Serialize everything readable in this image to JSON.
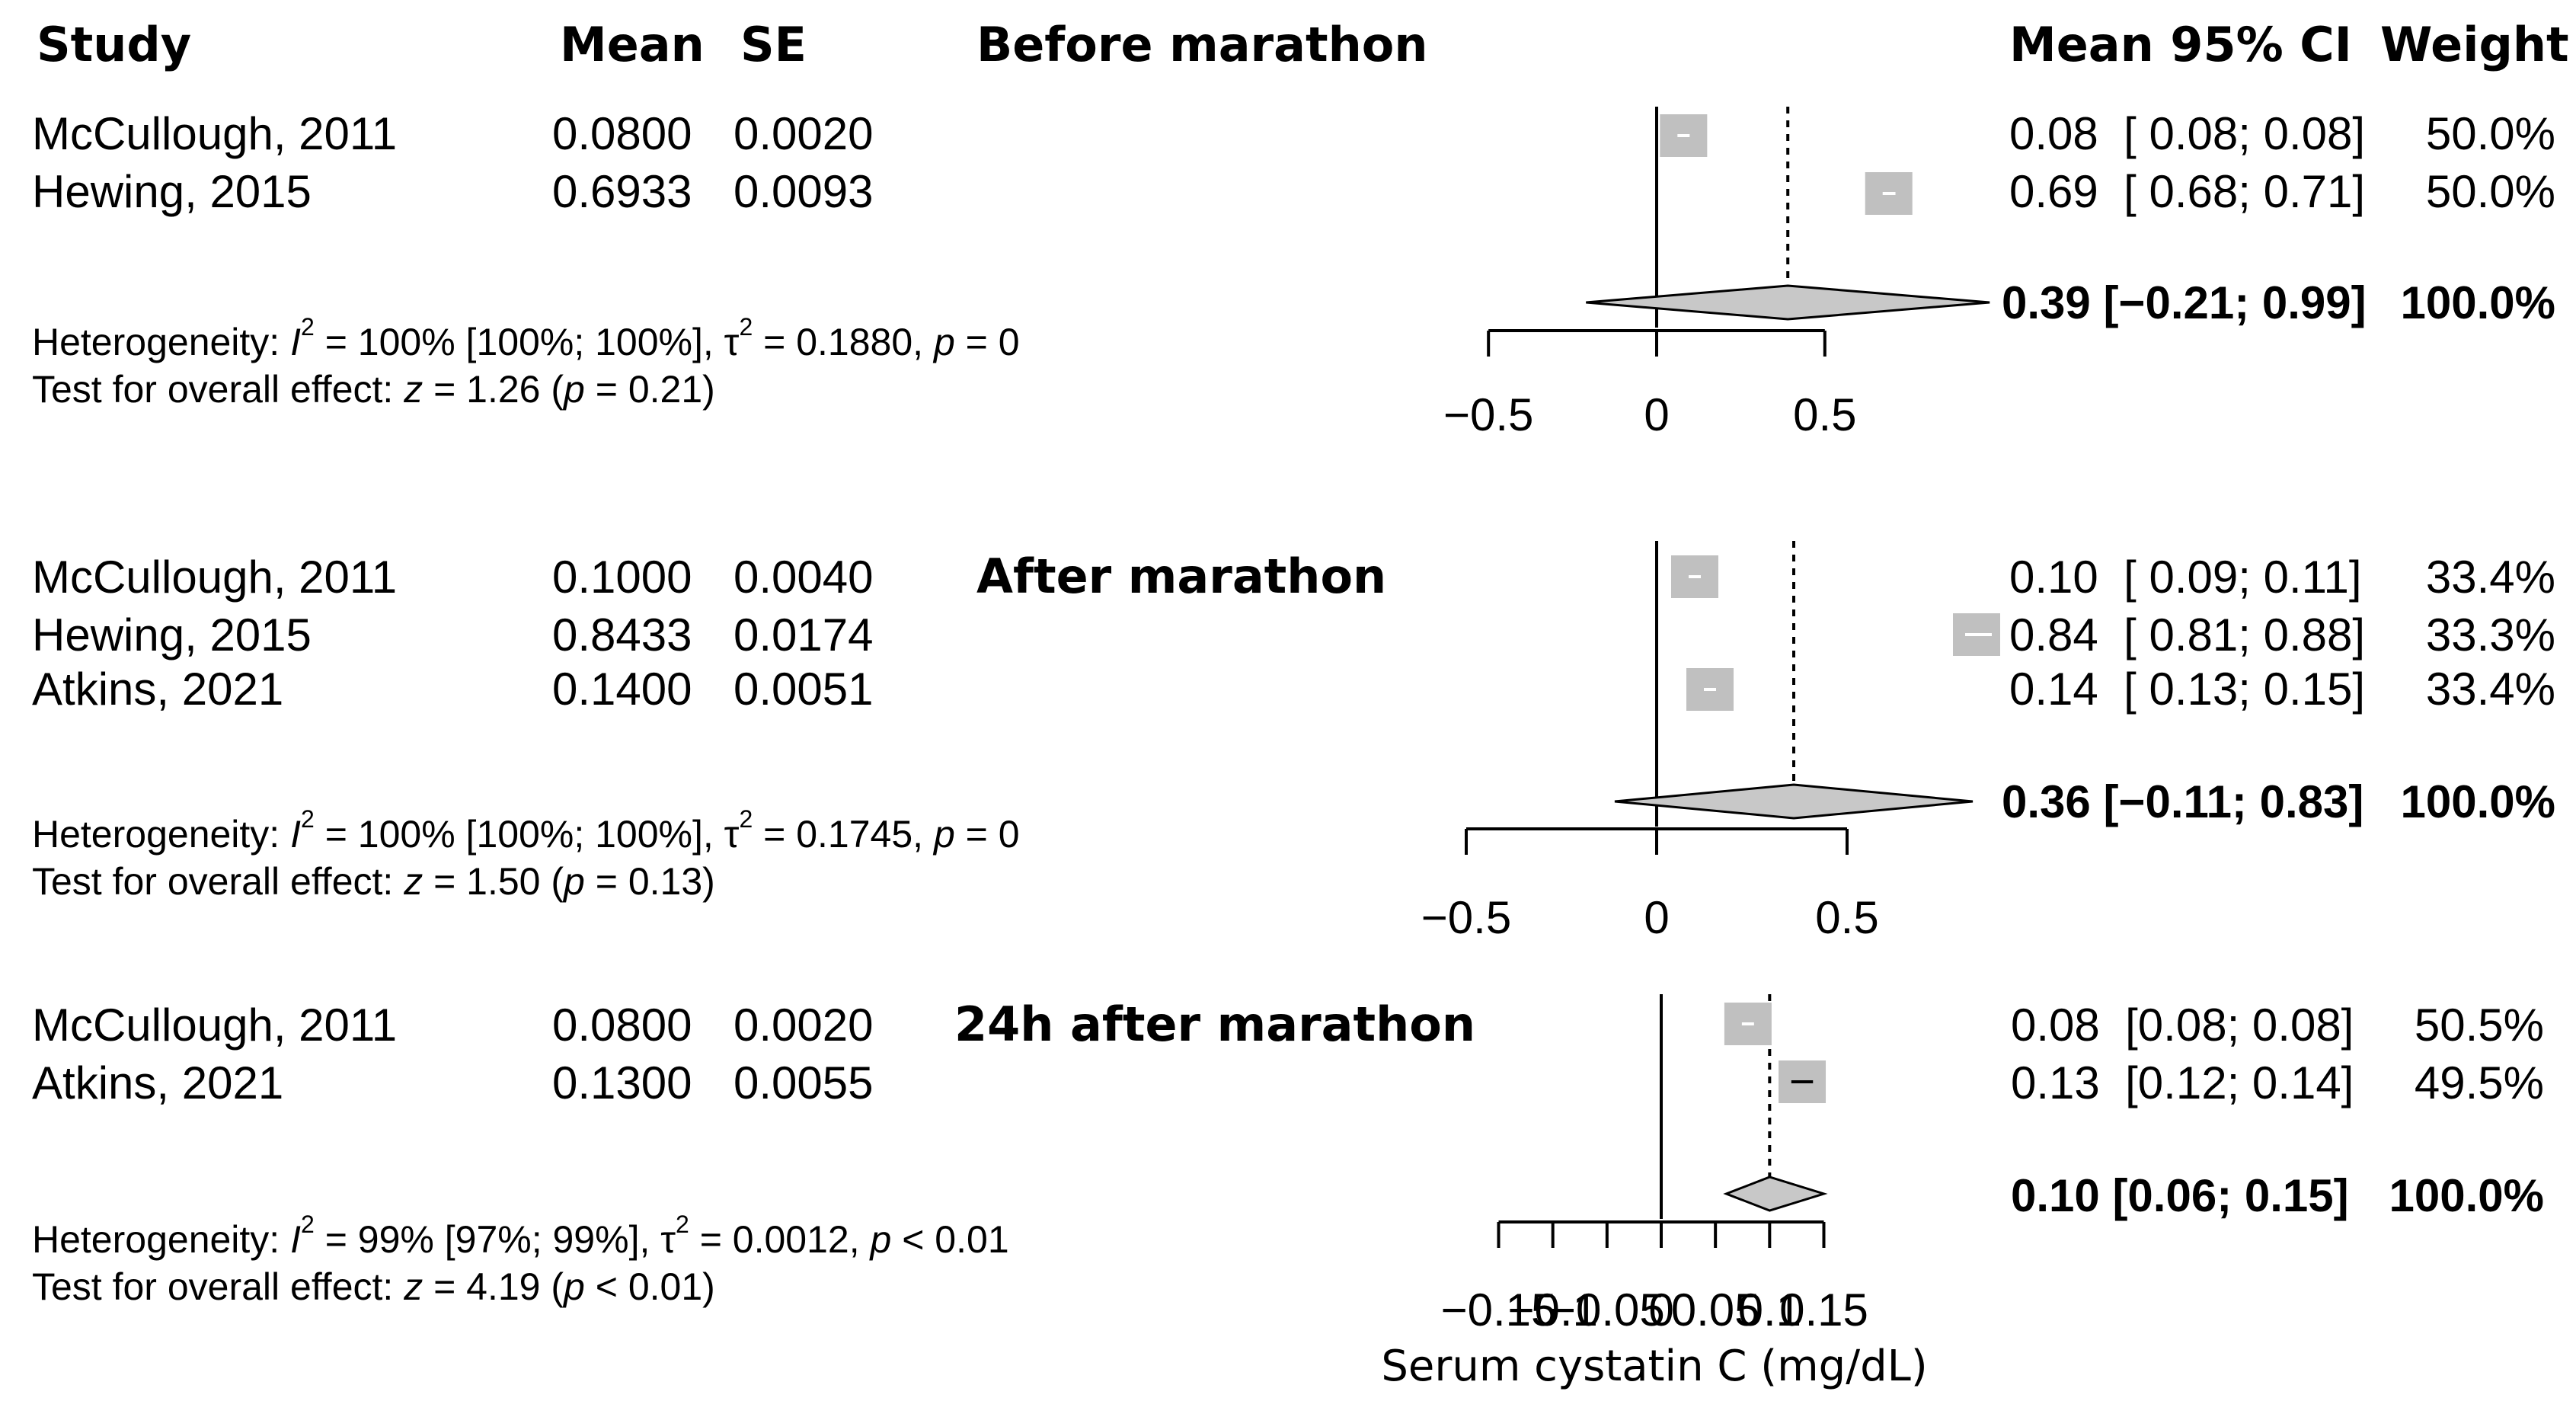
{
  "header": {
    "study": "Study",
    "mean": "Mean",
    "se": "SE",
    "mean_ci": "Mean 95% CI",
    "weight": "Weight"
  },
  "colors": {
    "box": "#c0c0c0",
    "diamond": "#c8c8c8",
    "ink": "#000000"
  },
  "chart_data": [
    {
      "type": "forest",
      "title": "Before marathon",
      "xlim": [
        -0.5,
        0.5
      ],
      "ticks": [
        {
          "v": -0.5,
          "label": "−0.5"
        },
        {
          "v": 0,
          "label": "0"
        },
        {
          "v": 0.5,
          "label": "0.5"
        }
      ],
      "studies": [
        {
          "name": "McCullough, 2011",
          "mean": "0.0800",
          "se": "0.0020",
          "est": 0.08,
          "lo": 0.08,
          "hi": 0.08,
          "ci": "0.08  [ 0.08; 0.08]",
          "weight": "50.0%"
        },
        {
          "name": "Hewing, 2015",
          "mean": "0.6933",
          "se": "0.0093",
          "est": 0.69,
          "lo": 0.68,
          "hi": 0.71,
          "ci": "0.69  [ 0.68; 0.71]",
          "weight": "50.0%"
        }
      ],
      "pooled": {
        "est": 0.39,
        "lo": -0.21,
        "hi": 0.99,
        "ci": "0.39 [−0.21; 0.99]",
        "weight": "100.0%"
      },
      "heterogeneity": {
        "i2": " = 100% [100%; 100%], ",
        "tau2": " = 0.1880, ",
        "p": " = 0"
      },
      "overall": {
        "z": " = 1.26 (",
        "p": " = 0.21)"
      }
    },
    {
      "type": "forest",
      "title": "After marathon",
      "xlim": [
        -0.5,
        0.5
      ],
      "ticks": [
        {
          "v": -0.5,
          "label": "−0.5"
        },
        {
          "v": 0,
          "label": "0"
        },
        {
          "v": 0.5,
          "label": "0.5"
        }
      ],
      "studies": [
        {
          "name": "McCullough, 2011",
          "mean": "0.1000",
          "se": "0.0040",
          "est": 0.1,
          "lo": 0.09,
          "hi": 0.11,
          "ci": "0.10  [ 0.09; 0.11]",
          "weight": "33.4%"
        },
        {
          "name": "Hewing, 2015",
          "mean": "0.8433",
          "se": "0.0174",
          "est": 0.84,
          "lo": 0.81,
          "hi": 0.88,
          "ci": "0.84  [ 0.81; 0.88]",
          "weight": "33.3%"
        },
        {
          "name": "Atkins, 2021",
          "mean": "0.1400",
          "se": "0.0051",
          "est": 0.14,
          "lo": 0.13,
          "hi": 0.15,
          "ci": "0.14  [ 0.13; 0.15]",
          "weight": "33.4%"
        }
      ],
      "pooled": {
        "est": 0.36,
        "lo": -0.11,
        "hi": 0.83,
        "ci": "0.36 [−0.11; 0.83]",
        "weight": "100.0%"
      },
      "heterogeneity": {
        "i2": " = 100% [100%; 100%], ",
        "tau2": " = 0.1745, ",
        "p": " = 0"
      },
      "overall": {
        "z": " = 1.50 (",
        "p": " = 0.13)"
      }
    },
    {
      "type": "forest",
      "title": "24h after marathon",
      "xlim": [
        -0.15,
        0.15
      ],
      "xlabel": "Serum cystatin C (mg/dL)",
      "ticks": [
        {
          "v": -0.15,
          "label": "−0.15"
        },
        {
          "v": -0.1,
          "label": "−0.1"
        },
        {
          "v": -0.05,
          "label": "−0.05"
        },
        {
          "v": 0,
          "label": "0"
        },
        {
          "v": 0.05,
          "label": "0.05"
        },
        {
          "v": 0.1,
          "label": "0.1"
        },
        {
          "v": 0.15,
          "label": "0.15"
        }
      ],
      "studies": [
        {
          "name": "McCullough, 2011",
          "mean": "0.0800",
          "se": "0.0020",
          "est": 0.08,
          "lo": 0.08,
          "hi": 0.08,
          "ci": "0.08  [0.08; 0.08]",
          "weight": "50.5%"
        },
        {
          "name": "Atkins, 2021",
          "mean": "0.1300",
          "se": "0.0055",
          "est": 0.13,
          "lo": 0.12,
          "hi": 0.14,
          "ci": "0.13  [0.12; 0.14]",
          "weight": "49.5%"
        }
      ],
      "pooled": {
        "est": 0.1,
        "lo": 0.06,
        "hi": 0.15,
        "ci": "0.10 [0.06; 0.15]",
        "weight": "100.0%"
      },
      "heterogeneity": {
        "i2": " = 99% [97%; 99%], ",
        "tau2": " = 0.0012, ",
        "p": " < 0.01"
      },
      "overall": {
        "z": " = 4.19 (",
        "p": " < 0.01)"
      }
    }
  ]
}
